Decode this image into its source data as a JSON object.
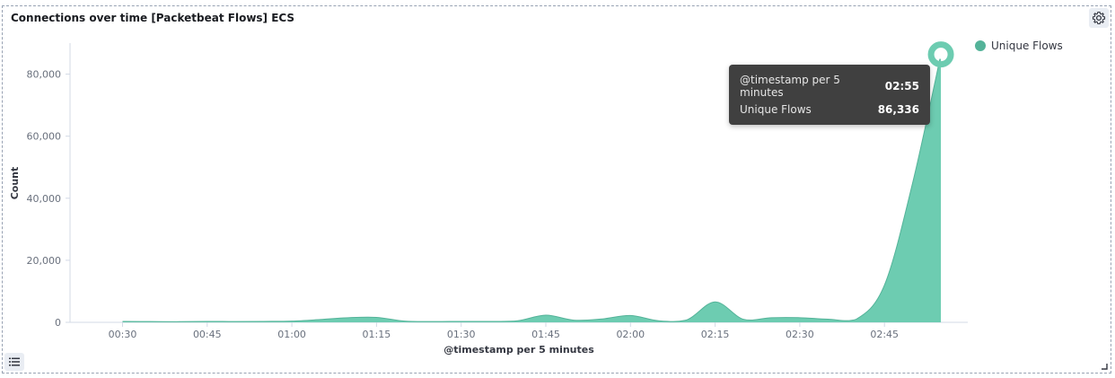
{
  "panel": {
    "title": "Connections over time [Packetbeat Flows] ECS"
  },
  "colors": {
    "series": "#6dccb1",
    "series_line": "#54b399",
    "highlight": "#54b399"
  },
  "icons": {
    "settings": "gear-icon",
    "legend_toggle": "list-icon",
    "resize": "resize-handle-icon"
  },
  "tooltip": {
    "x_label": "@timestamp per 5 minutes",
    "x_value": "02:55",
    "y_label": "Unique Flows",
    "y_value": "86,336"
  },
  "chart_data": {
    "type": "area",
    "xlabel": "@timestamp per 5 minutes",
    "ylabel": "Count",
    "x_ticks": [
      "00:30",
      "00:45",
      "01:00",
      "01:15",
      "01:30",
      "01:45",
      "02:00",
      "02:15",
      "02:30",
      "02:45"
    ],
    "y_ticks": [
      "0",
      "20,000",
      "40,000",
      "60,000",
      "80,000"
    ],
    "ylim": [
      0,
      90000
    ],
    "legend": "right",
    "series": [
      {
        "name": "Unique Flows",
        "x": [
          "00:30",
          "00:35",
          "00:40",
          "00:45",
          "00:50",
          "00:55",
          "01:00",
          "01:05",
          "01:10",
          "01:15",
          "01:20",
          "01:25",
          "01:30",
          "01:35",
          "01:40",
          "01:45",
          "01:50",
          "01:55",
          "02:00",
          "02:05",
          "02:10",
          "02:15",
          "02:20",
          "02:25",
          "02:30",
          "02:35",
          "02:40",
          "02:45",
          "02:50",
          "02:55"
        ],
        "values": [
          300,
          250,
          200,
          300,
          250,
          300,
          400,
          900,
          1500,
          1600,
          400,
          250,
          300,
          300,
          500,
          2300,
          700,
          1100,
          2200,
          500,
          800,
          6600,
          1000,
          1500,
          1500,
          1000,
          1000,
          12000,
          45000,
          86336
        ]
      }
    ],
    "highlight": {
      "x": "02:55",
      "value": 86336
    }
  }
}
